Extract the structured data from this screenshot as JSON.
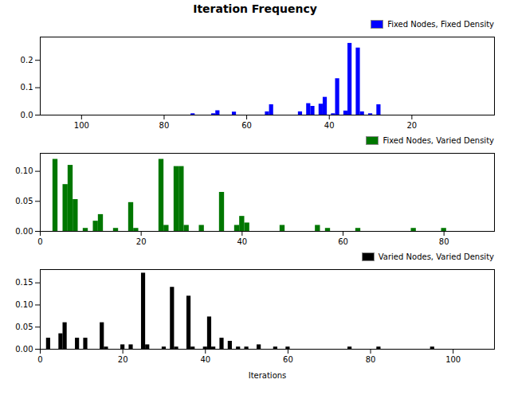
{
  "chart_data": [
    {
      "type": "bar",
      "title": "Iteration Frequency",
      "x": [
        28,
        30,
        32,
        33,
        35,
        36,
        38,
        39,
        41,
        42,
        44,
        45,
        47,
        54,
        55,
        63,
        67,
        68,
        73
      ],
      "series": [
        {
          "name": "Fixed Nodes, Fixed Density",
          "color": "#0000ff",
          "values": [
            0.038,
            0.005,
            0.012,
            0.245,
            0.262,
            0.015,
            0.133,
            0.005,
            0.065,
            0.04,
            0.032,
            0.042,
            0.012,
            0.038,
            0.012,
            0.011,
            0.016,
            0.005,
            0.005
          ]
        }
      ],
      "xlim": [
        110,
        0
      ],
      "xticks": [
        20,
        40,
        60,
        80,
        100
      ],
      "ylim": [
        0,
        0.285
      ],
      "yticks": [
        {
          "value": 0.0,
          "label": "0.0"
        },
        0.1,
        0.2
      ],
      "legend": "upper right"
    },
    {
      "type": "bar",
      "x": [
        3,
        5,
        6,
        7,
        9,
        11,
        12,
        15,
        18,
        19,
        24,
        25,
        27,
        28,
        29,
        32,
        36,
        39,
        40,
        41,
        48,
        55,
        57,
        63,
        74,
        80
      ],
      "series": [
        {
          "name": "Fixed Nodes, Varied Density",
          "color": "#007700",
          "values": [
            0.12,
            0.078,
            0.11,
            0.053,
            0.005,
            0.017,
            0.028,
            0.005,
            0.048,
            0.005,
            0.12,
            0.01,
            0.108,
            0.108,
            0.01,
            0.01,
            0.065,
            0.01,
            0.025,
            0.014,
            0.01,
            0.01,
            0.005,
            0.005,
            0.005,
            0.005
          ]
        }
      ],
      "xlim": [
        0,
        90
      ],
      "xticks": [
        0,
        20,
        40,
        60,
        80
      ],
      "ylim": [
        0,
        0.13
      ],
      "yticks": [
        {
          "value": 0.0,
          "label": "0.00"
        },
        0.05,
        {
          "value": 0.1,
          "label": "0.10"
        }
      ],
      "legend": "upper right"
    },
    {
      "type": "bar",
      "xlabel": "Iterations",
      "x": [
        2,
        5,
        6,
        9,
        11,
        15,
        16,
        20,
        22,
        25,
        26,
        30,
        32,
        33,
        36,
        37,
        40,
        41,
        42,
        44,
        46,
        48,
        50,
        53,
        57,
        60,
        75,
        82,
        95
      ],
      "series": [
        {
          "name": "Varied Nodes, Varied Density",
          "color": "#000000",
          "values": [
            0.025,
            0.035,
            0.06,
            0.025,
            0.025,
            0.06,
            0.005,
            0.01,
            0.01,
            0.172,
            0.01,
            0.005,
            0.14,
            0.005,
            0.12,
            0.005,
            0.005,
            0.073,
            0.005,
            0.025,
            0.018,
            0.005,
            0.005,
            0.01,
            0.005,
            0.005,
            0.005,
            0.005,
            0.005
          ]
        }
      ],
      "xlim": [
        0,
        110
      ],
      "xticks": [
        0,
        20,
        40,
        60,
        80,
        100
      ],
      "ylim": [
        0,
        0.18
      ],
      "yticks": [
        {
          "value": 0.0,
          "label": "0.00"
        },
        0.05,
        {
          "value": 0.1,
          "label": "0.10"
        },
        0.15
      ],
      "legend": "upper right"
    }
  ]
}
